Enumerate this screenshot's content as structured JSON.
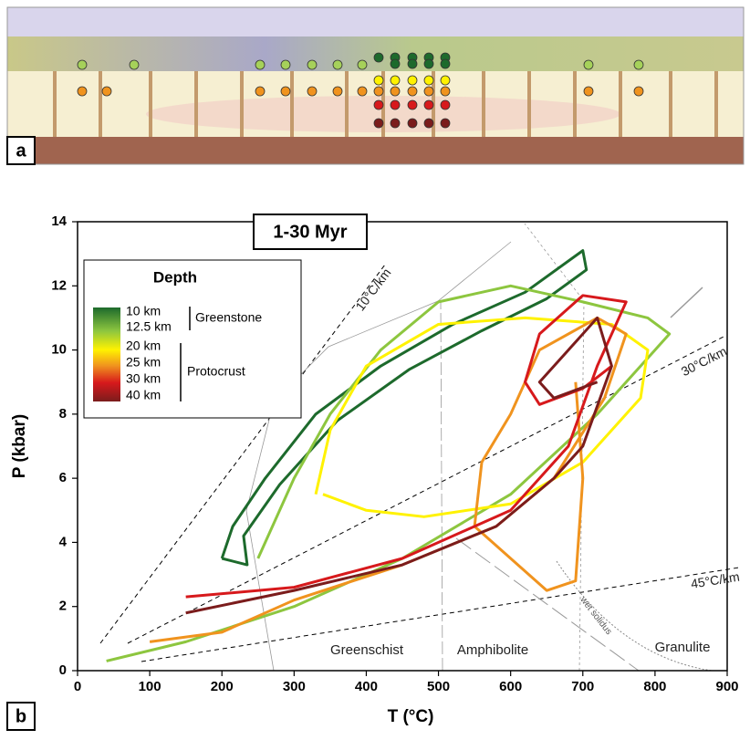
{
  "panel_labels": [
    "a",
    "b"
  ],
  "chart_data": {
    "type": "line",
    "title": "1-30 Myr",
    "x_label": "T (°C)",
    "y_label": "P (kbar)",
    "xlim": [
      0,
      900
    ],
    "xticks": [
      0,
      100,
      200,
      300,
      400,
      500,
      600,
      700,
      800,
      900
    ],
    "ylim": [
      0,
      14
    ],
    "yticks": [
      0,
      2,
      4,
      6,
      8,
      10,
      12,
      14
    ],
    "legend_title": "Depth",
    "legend_position": "upper left",
    "legend_groups": [
      "Greenstone",
      "Protocrust"
    ],
    "annotations": [
      "10°C/km",
      "30°C/km",
      "45°C/km",
      "wet solidus",
      "Greenschist",
      "Amphibolite",
      "Granulite"
    ],
    "series": [
      {
        "name": "10 km",
        "color": "#1d6a2c",
        "x": [
          200,
          215,
          260,
          330,
          420,
          520,
          620,
          700,
          705,
          650,
          560,
          460,
          360,
          280,
          230,
          235,
          200
        ],
        "values": [
          3.5,
          4.5,
          6,
          8,
          9.5,
          10.8,
          11.8,
          13.1,
          12.5,
          11.6,
          10.6,
          9.4,
          7.8,
          5.8,
          4.2,
          3.3,
          3.5
        ]
      },
      {
        "name": "12.5 km",
        "color": "#8dc63f",
        "x": [
          40,
          150,
          300,
          450,
          600,
          720,
          800,
          820,
          790,
          700,
          600,
          500,
          420,
          350,
          300,
          270,
          250
        ],
        "values": [
          0.3,
          0.9,
          2,
          3.5,
          5.5,
          8,
          10,
          10.5,
          11,
          11.5,
          12,
          11.5,
          10,
          8,
          6,
          4.5,
          3.5
        ]
      },
      {
        "name": "20 km",
        "color": "#fff200",
        "x": [
          330,
          350,
          400,
          500,
          620,
          740,
          790,
          780,
          700,
          600,
          480,
          400,
          340
        ],
        "values": [
          5.5,
          7.5,
          9.5,
          10.8,
          11,
          10.8,
          10,
          8.5,
          6.5,
          5.2,
          4.8,
          5,
          5.5
        ]
      },
      {
        "name": "25 km",
        "color": "#f0931e",
        "x": [
          100,
          200,
          300,
          450,
          580,
          660,
          730,
          760,
          720,
          640,
          600,
          560,
          550,
          650,
          690,
          700,
          690
        ],
        "values": [
          0.9,
          1.2,
          2.2,
          3.3,
          4.5,
          6,
          8.5,
          10.5,
          11,
          10,
          8,
          6.5,
          4.5,
          2.5,
          2.8,
          6,
          9
        ]
      },
      {
        "name": "30 km",
        "color": "#d7191c",
        "x": [
          150,
          300,
          450,
          600,
          680,
          720,
          760,
          700,
          640,
          620,
          640,
          700,
          740
        ],
        "values": [
          2.3,
          2.6,
          3.5,
          5,
          7,
          9.5,
          11.5,
          11.7,
          10.5,
          9,
          8.3,
          8.8,
          9.5
        ]
      },
      {
        "name": "40 km",
        "color": "#7b1c1c",
        "x": [
          150,
          300,
          450,
          580,
          660,
          700,
          740,
          720,
          680,
          640,
          660,
          720
        ],
        "values": [
          1.8,
          2.5,
          3.3,
          4.5,
          6,
          7,
          9.5,
          11,
          10,
          9,
          8.5,
          9
        ]
      }
    ]
  }
}
